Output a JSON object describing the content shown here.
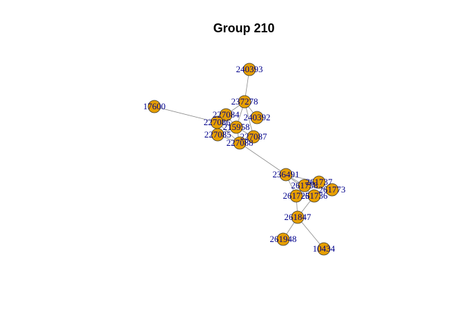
{
  "title": "Group 210",
  "colors": {
    "node_fill": "#E69F00",
    "node_stroke": "#333333",
    "edge": "#888888",
    "label": "#00008B"
  },
  "nodes": [
    {
      "id": "240393",
      "label": "240393"
    },
    {
      "id": "237278",
      "label": "237278"
    },
    {
      "id": "17600",
      "label": "17600"
    },
    {
      "id": "227084",
      "label": "227084"
    },
    {
      "id": "240392",
      "label": "240392"
    },
    {
      "id": "227086",
      "label": "227086"
    },
    {
      "id": "215958",
      "label": "215958"
    },
    {
      "id": "227085",
      "label": "227085"
    },
    {
      "id": "227087",
      "label": "227087"
    },
    {
      "id": "227088",
      "label": "227088"
    },
    {
      "id": "236491",
      "label": "236491"
    },
    {
      "id": "261737",
      "label": "261737"
    },
    {
      "id": "261758",
      "label": "261758"
    },
    {
      "id": "261773",
      "label": "261773"
    },
    {
      "id": "261736",
      "label": "261736"
    },
    {
      "id": "261725",
      "label": "261725"
    },
    {
      "id": "261847",
      "label": "261847"
    },
    {
      "id": "261948",
      "label": "261948"
    },
    {
      "id": "10434",
      "label": "10434"
    }
  ],
  "edges": [
    [
      "240393",
      "237278"
    ],
    [
      "237278",
      "227084"
    ],
    [
      "237278",
      "240392"
    ],
    [
      "237278",
      "215958"
    ],
    [
      "237278",
      "227087"
    ],
    [
      "17600",
      "215958"
    ],
    [
      "227084",
      "227086"
    ],
    [
      "227084",
      "215958"
    ],
    [
      "227086",
      "215958"
    ],
    [
      "227085",
      "215958"
    ],
    [
      "215958",
      "227087"
    ],
    [
      "215958",
      "227088"
    ],
    [
      "227088",
      "227087"
    ],
    [
      "227088",
      "236491"
    ],
    [
      "227086",
      "227088"
    ],
    [
      "227085",
      "227088"
    ],
    [
      "236491",
      "261758"
    ],
    [
      "236491",
      "261737"
    ],
    [
      "236491",
      "261725"
    ],
    [
      "236491",
      "261736"
    ],
    [
      "261758",
      "261737"
    ],
    [
      "261758",
      "261773"
    ],
    [
      "261737",
      "261773"
    ],
    [
      "261725",
      "261736"
    ],
    [
      "261758",
      "261725"
    ],
    [
      "261725",
      "261847"
    ],
    [
      "261736",
      "261847"
    ],
    [
      "261847",
      "261948"
    ],
    [
      "261847",
      "10434"
    ]
  ]
}
